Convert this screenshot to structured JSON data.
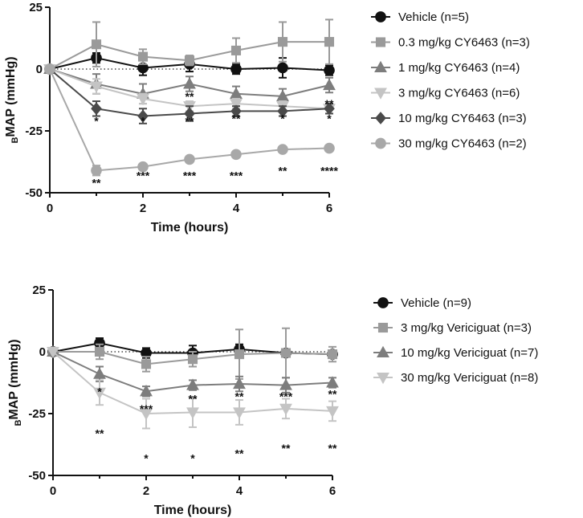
{
  "chart_data": [
    {
      "type": "line",
      "xlabel": "Time (hours)",
      "ylabel_sub": "B",
      "ylabel_main": "MAP (mmHg)",
      "xlim": [
        0,
        6
      ],
      "ylim": [
        -50,
        25
      ],
      "xticks": [
        "0",
        "2",
        "4",
        "6"
      ],
      "yticks": [
        "25",
        "0",
        "-25",
        "-50"
      ],
      "x": [
        0,
        1,
        2,
        3,
        4,
        5,
        6
      ],
      "series": [
        {
          "name": "Vehicle (n=5)",
          "color": "#111111",
          "marker": "circle",
          "values": [
            0,
            4.5,
            0.5,
            2,
            0,
            0.5,
            -0.5
          ],
          "errors": [
            0,
            2,
            3,
            3,
            2,
            4,
            2
          ]
        },
        {
          "name": "0.3 mg/kg CY6463 (n=3)",
          "color": "#9a9a9a",
          "marker": "square",
          "values": [
            0,
            10,
            5,
            3.5,
            7.5,
            11,
            11
          ],
          "errors": [
            0,
            9,
            3,
            2,
            5,
            8,
            9
          ]
        },
        {
          "name": "1 mg/kg CY6463 (n=4)",
          "color": "#7d7d7d",
          "marker": "triangle-up",
          "values": [
            0,
            -6,
            -10,
            -6,
            -10,
            -11,
            -6.5
          ],
          "errors": [
            0,
            4,
            4,
            3,
            3,
            3,
            3
          ]
        },
        {
          "name": "3 mg/kg CY6463 (n=6)",
          "color": "#c4c4c4",
          "marker": "triangle-down",
          "values": [
            0,
            -7,
            -12,
            -15,
            -14,
            -15,
            -16
          ],
          "errors": [
            0,
            3,
            2,
            2,
            2,
            2,
            2
          ]
        },
        {
          "name": "10 mg/kg CY6463 (n=3)",
          "color": "#4a4a4a",
          "marker": "diamond",
          "values": [
            0,
            -16,
            -19,
            -18,
            -17,
            -17,
            -16
          ],
          "errors": [
            0,
            3,
            3,
            3,
            2,
            2,
            2
          ]
        },
        {
          "name": "30 mg/kg CY6463 (n=2)",
          "color": "#a8a8a8",
          "marker": "circle",
          "values": [
            0,
            -41,
            -39.5,
            -36.5,
            -34.5,
            -32.5,
            -32
          ],
          "errors": [
            0,
            2,
            1,
            1,
            1,
            1,
            1
          ]
        }
      ],
      "annotations": [
        {
          "x": 1,
          "y": -21,
          "text": "*"
        },
        {
          "x": 1,
          "y": -46,
          "text": "**"
        },
        {
          "x": 2,
          "y": -21,
          "text": "*"
        },
        {
          "x": 2,
          "y": -43,
          "text": "***"
        },
        {
          "x": 3,
          "y": -11,
          "text": "**"
        },
        {
          "x": 3,
          "y": -21,
          "text": "**"
        },
        {
          "x": 3,
          "y": -43,
          "text": "***"
        },
        {
          "x": 4,
          "y": -20,
          "text": "**"
        },
        {
          "x": 4,
          "y": -43,
          "text": "***"
        },
        {
          "x": 5,
          "y": -20,
          "text": "*"
        },
        {
          "x": 5,
          "y": -41,
          "text": "**"
        },
        {
          "x": 6,
          "y": -14,
          "text": "**"
        },
        {
          "x": 6,
          "y": -20,
          "text": "*"
        },
        {
          "x": 6,
          "y": -41,
          "text": "****"
        }
      ]
    },
    {
      "type": "line",
      "xlabel": "Time (hours)",
      "ylabel_sub": "B",
      "ylabel_main": "MAP (mmHg)",
      "xlim": [
        0,
        6
      ],
      "ylim": [
        -50,
        25
      ],
      "xticks": [
        "0",
        "2",
        "4",
        "6"
      ],
      "yticks": [
        "25",
        "0",
        "-25",
        "-50"
      ],
      "x": [
        0,
        1,
        2,
        3,
        4,
        5,
        6
      ],
      "series": [
        {
          "name": "Vehicle (n=9)",
          "color": "#111111",
          "marker": "circle",
          "values": [
            0,
            3.5,
            -0.5,
            -0.5,
            1,
            -0.5,
            -1
          ],
          "errors": [
            0,
            2,
            2,
            3,
            2,
            1,
            1
          ]
        },
        {
          "name": "3 mg/kg Vericiguat (n=3)",
          "color": "#9a9a9a",
          "marker": "square",
          "values": [
            0,
            0,
            -5,
            -3,
            -1,
            -0.5,
            -1
          ],
          "errors": [
            0,
            3,
            3,
            3,
            10,
            10,
            3
          ]
        },
        {
          "name": "10 mg/kg Vericiguat (n=7)",
          "color": "#7d7d7d",
          "marker": "triangle-up",
          "values": [
            0,
            -9,
            -16,
            -13.5,
            -13,
            -13.5,
            -12.5
          ],
          "errors": [
            0,
            3,
            2,
            2,
            3,
            3,
            2
          ]
        },
        {
          "name": "30 mg/kg Vericiguat (n=8)",
          "color": "#c4c4c4",
          "marker": "triangle-down",
          "values": [
            0,
            -16.5,
            -25,
            -24.5,
            -24.5,
            -23,
            -24
          ],
          "errors": [
            0,
            5,
            6,
            6,
            5,
            4,
            4
          ]
        }
      ],
      "annotations": [
        {
          "x": 1,
          "y": -16,
          "text": "*"
        },
        {
          "x": 1,
          "y": -33,
          "text": "**"
        },
        {
          "x": 2,
          "y": -23,
          "text": "***"
        },
        {
          "x": 2,
          "y": -43,
          "text": "*"
        },
        {
          "x": 3,
          "y": -19,
          "text": "**"
        },
        {
          "x": 3,
          "y": -43,
          "text": "*"
        },
        {
          "x": 4,
          "y": -18,
          "text": "**"
        },
        {
          "x": 4,
          "y": -41,
          "text": "**"
        },
        {
          "x": 5,
          "y": -18,
          "text": "***"
        },
        {
          "x": 5,
          "y": -39,
          "text": "**"
        },
        {
          "x": 6,
          "y": -17,
          "text": "**"
        },
        {
          "x": 6,
          "y": -39,
          "text": "**"
        }
      ]
    }
  ]
}
